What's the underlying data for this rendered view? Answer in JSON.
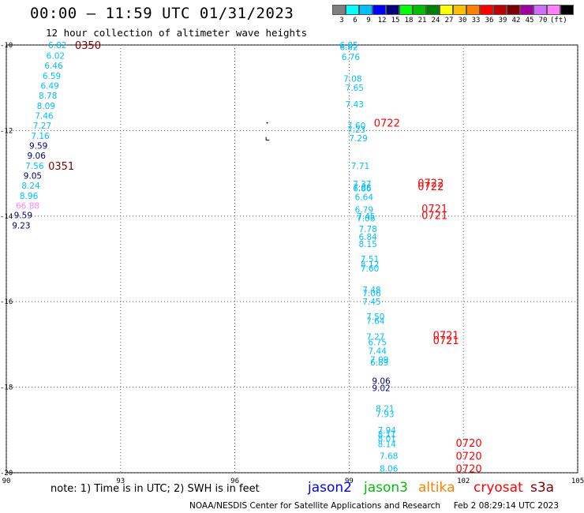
{
  "header": {
    "title": "00:00 — 11:59 UTC 01/31/2023",
    "subtitle": "12 hour collection of altimeter wave heights"
  },
  "scale": {
    "colors": [
      "#7f7f7f",
      "#00ffff",
      "#00bfff",
      "#0000ff",
      "#00007f",
      "#00ff00",
      "#00bf00",
      "#007f00",
      "#ffff00",
      "#ffbf00",
      "#ff7f00",
      "#ff0000",
      "#bf0000",
      "#7f0000",
      "#9f009f",
      "#cf6fff",
      "#ff7fff",
      "#000000"
    ],
    "labels": [
      "3",
      "6",
      "9",
      "12",
      "15",
      "18",
      "21",
      "24",
      "27",
      "30",
      "33",
      "36",
      "39",
      "42",
      "45",
      "70",
      "(ft)"
    ]
  },
  "map": {
    "lon_ticks": [
      "90",
      "93",
      "96",
      "99",
      "102",
      "105"
    ],
    "lat_ticks": [
      "-10",
      "-12",
      "-14",
      "-16",
      "-18",
      "-20"
    ],
    "lon_range": [
      90,
      105
    ],
    "lat_range": [
      -20,
      -10
    ],
    "grid": "dotted",
    "points": [
      {
        "v": "6.82",
        "lon": 91.1,
        "lat": -10.0,
        "c": "#00bfff"
      },
      {
        "v": "6.02",
        "lon": 91.05,
        "lat": -10.25,
        "c": "#00bfff"
      },
      {
        "v": "6.46",
        "lon": 91.0,
        "lat": -10.48,
        "c": "#00bfff"
      },
      {
        "v": "6.59",
        "lon": 90.95,
        "lat": -10.72,
        "c": "#00bfff"
      },
      {
        "v": "6.49",
        "lon": 90.9,
        "lat": -10.95,
        "c": "#00bfff"
      },
      {
        "v": "8.78",
        "lon": 90.85,
        "lat": -11.18,
        "c": "#00bfff"
      },
      {
        "v": "8.09",
        "lon": 90.8,
        "lat": -11.42,
        "c": "#00bfff"
      },
      {
        "v": "7.46",
        "lon": 90.75,
        "lat": -11.65,
        "c": "#00bfff"
      },
      {
        "v": "7.27",
        "lon": 90.7,
        "lat": -11.88,
        "c": "#00bfff"
      },
      {
        "v": "7.16",
        "lon": 90.65,
        "lat": -12.12,
        "c": "#00bfff"
      },
      {
        "v": "9.59",
        "lon": 90.6,
        "lat": -12.35,
        "c": "#00007f"
      },
      {
        "v": "9.06",
        "lon": 90.55,
        "lat": -12.58,
        "c": "#00007f"
      },
      {
        "v": "7.56",
        "lon": 90.5,
        "lat": -12.82,
        "c": "#00bfff"
      },
      {
        "v": "9.05",
        "lon": 90.45,
        "lat": -13.05,
        "c": "#00007f"
      },
      {
        "v": "8.24",
        "lon": 90.4,
        "lat": -13.28,
        "c": "#00bfff"
      },
      {
        "v": "8.96",
        "lon": 90.35,
        "lat": -13.52,
        "c": "#00bfff"
      },
      {
        "v": "66.88",
        "lon": 90.25,
        "lat": -13.75,
        "c": "#ff7fff"
      },
      {
        "v": "9.59",
        "lon": 90.2,
        "lat": -13.98,
        "c": "#00007f"
      },
      {
        "v": "9.23",
        "lon": 90.15,
        "lat": -14.22,
        "c": "#00007f"
      },
      {
        "v": "6.85",
        "lon": 98.75,
        "lat": -10.0,
        "c": "#00bfff"
      },
      {
        "v": "6.82",
        "lon": 98.75,
        "lat": -10.05,
        "c": "#00bfff"
      },
      {
        "v": "6.76",
        "lon": 98.8,
        "lat": -10.28,
        "c": "#00bfff"
      },
      {
        "v": "7.08",
        "lon": 98.85,
        "lat": -10.78,
        "c": "#00bfff"
      },
      {
        "v": "7.65",
        "lon": 98.9,
        "lat": -11.0,
        "c": "#00bfff"
      },
      {
        "v": "7.43",
        "lon": 98.9,
        "lat": -11.38,
        "c": "#00bfff"
      },
      {
        "v": "7.60",
        "lon": 98.95,
        "lat": -11.88,
        "c": "#00bfff"
      },
      {
        "v": "7.23",
        "lon": 98.95,
        "lat": -11.97,
        "c": "#00bfff"
      },
      {
        "v": "7.29",
        "lon": 99.0,
        "lat": -12.18,
        "c": "#00bfff"
      },
      {
        "v": "7.71",
        "lon": 99.05,
        "lat": -12.82,
        "c": "#00bfff"
      },
      {
        "v": "7.37",
        "lon": 99.1,
        "lat": -13.25,
        "c": "#00bfff"
      },
      {
        "v": "6.86",
        "lon": 99.1,
        "lat": -13.35,
        "c": "#00bfff"
      },
      {
        "v": "7.08",
        "lon": 99.1,
        "lat": -13.33,
        "c": "#00bfff"
      },
      {
        "v": "6.64",
        "lon": 99.15,
        "lat": -13.55,
        "c": "#00bfff"
      },
      {
        "v": "6.79",
        "lon": 99.15,
        "lat": -13.85,
        "c": "#00bfff"
      },
      {
        "v": "7.45",
        "lon": 99.2,
        "lat": -14.0,
        "c": "#00bfff"
      },
      {
        "v": "7.06",
        "lon": 99.2,
        "lat": -14.05,
        "c": "#00bfff"
      },
      {
        "v": "7.78",
        "lon": 99.25,
        "lat": -14.3,
        "c": "#00bfff"
      },
      {
        "v": "6.84",
        "lon": 99.25,
        "lat": -14.48,
        "c": "#00bfff"
      },
      {
        "v": "8.15",
        "lon": 99.25,
        "lat": -14.65,
        "c": "#00bfff"
      },
      {
        "v": "7.51",
        "lon": 99.3,
        "lat": -15.0,
        "c": "#00bfff"
      },
      {
        "v": "8.12",
        "lon": 99.3,
        "lat": -15.12,
        "c": "#00bfff"
      },
      {
        "v": "7.60",
        "lon": 99.3,
        "lat": -15.22,
        "c": "#00bfff"
      },
      {
        "v": "7.48",
        "lon": 99.35,
        "lat": -15.72,
        "c": "#00bfff"
      },
      {
        "v": "7.06",
        "lon": 99.35,
        "lat": -15.8,
        "c": "#00bfff"
      },
      {
        "v": "7.45",
        "lon": 99.35,
        "lat": -16.0,
        "c": "#00bfff"
      },
      {
        "v": "7.50",
        "lon": 99.45,
        "lat": -16.35,
        "c": "#00bfff"
      },
      {
        "v": "7.64",
        "lon": 99.45,
        "lat": -16.45,
        "c": "#00bfff"
      },
      {
        "v": "7.27",
        "lon": 99.45,
        "lat": -16.82,
        "c": "#00bfff"
      },
      {
        "v": "6.75",
        "lon": 99.5,
        "lat": -16.95,
        "c": "#00bfff"
      },
      {
        "v": "7.44",
        "lon": 99.5,
        "lat": -17.15,
        "c": "#00bfff"
      },
      {
        "v": "7.09",
        "lon": 99.55,
        "lat": -17.35,
        "c": "#00bfff"
      },
      {
        "v": "6.89",
        "lon": 99.55,
        "lat": -17.42,
        "c": "#00bfff"
      },
      {
        "v": "9.06",
        "lon": 99.6,
        "lat": -17.85,
        "c": "#00007f"
      },
      {
        "v": "9.02",
        "lon": 99.6,
        "lat": -18.02,
        "c": "#00007f"
      },
      {
        "v": "8.21",
        "lon": 99.7,
        "lat": -18.5,
        "c": "#00bfff"
      },
      {
        "v": "7.93",
        "lon": 99.7,
        "lat": -18.63,
        "c": "#00bfff"
      },
      {
        "v": "7.94",
        "lon": 99.75,
        "lat": -19.0,
        "c": "#00bfff"
      },
      {
        "v": "8.11",
        "lon": 99.75,
        "lat": -19.1,
        "c": "#00bfff"
      },
      {
        "v": "8.01",
        "lon": 99.75,
        "lat": -19.2,
        "c": "#00bfff"
      },
      {
        "v": "8.14",
        "lon": 99.75,
        "lat": -19.33,
        "c": "#00bfff"
      },
      {
        "v": "7.68",
        "lon": 99.8,
        "lat": -19.6,
        "c": "#00bfff"
      },
      {
        "v": "8.06",
        "lon": 99.8,
        "lat": -19.9,
        "c": "#00bfff"
      }
    ],
    "time_labels": [
      {
        "t": "0350",
        "lon": 91.8,
        "lat": -10.0,
        "c": "#7f0000"
      },
      {
        "t": "0351",
        "lon": 91.1,
        "lat": -12.82,
        "c": "#7f0000"
      },
      {
        "t": "0722",
        "lon": 99.65,
        "lat": -11.82,
        "c": "#ff0000"
      },
      {
        "t": "0722",
        "lon": 100.8,
        "lat": -13.22,
        "c": "#ff0000"
      },
      {
        "t": "0722",
        "lon": 100.8,
        "lat": -13.3,
        "c": "#ff0000"
      },
      {
        "t": "0721",
        "lon": 100.9,
        "lat": -13.82,
        "c": "#ff0000"
      },
      {
        "t": "0721",
        "lon": 100.9,
        "lat": -13.98,
        "c": "#ff0000"
      },
      {
        "t": "0721",
        "lon": 101.2,
        "lat": -16.78,
        "c": "#ff0000"
      },
      {
        "t": "0721",
        "lon": 101.2,
        "lat": -16.9,
        "c": "#ff0000"
      },
      {
        "t": "0720",
        "lon": 101.8,
        "lat": -19.3,
        "c": "#ff0000"
      },
      {
        "t": "0720",
        "lon": 101.8,
        "lat": -19.6,
        "c": "#ff0000"
      },
      {
        "t": "0720",
        "lon": 101.8,
        "lat": -19.9,
        "c": "#ff0000"
      }
    ]
  },
  "legend": {
    "note": "note:  1) Time is in UTC;  2) SWH is in feet",
    "satellites": [
      {
        "name": "jason2",
        "color": "#0000ff"
      },
      {
        "name": "jason3",
        "color": "#00bf00"
      },
      {
        "name": "altika",
        "color": "#ff7f00"
      },
      {
        "name": "cryosat",
        "color": "#ff0000"
      },
      {
        "name": "s3a",
        "color": "#7f0000"
      }
    ]
  },
  "footer": {
    "credit": "NOAA/NESDIS Center for Satellite Applications and Research",
    "timestamp": "Feb  2 08:29:14 UTC 2023"
  }
}
